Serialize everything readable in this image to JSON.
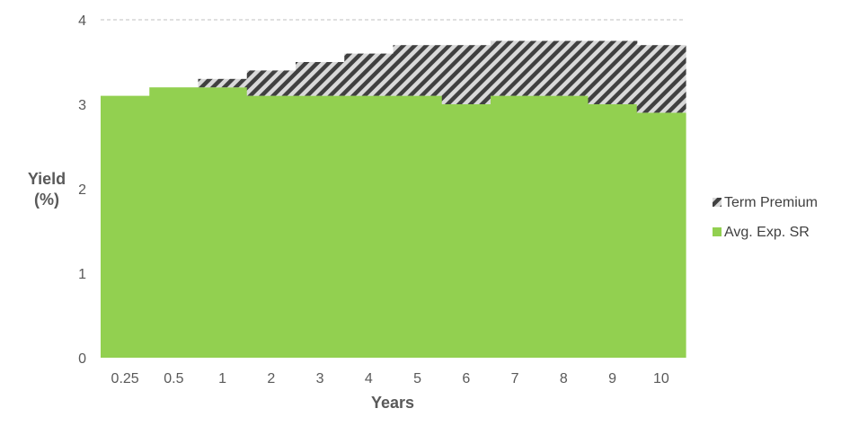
{
  "chart_data": {
    "type": "area",
    "stacked": true,
    "title": "",
    "xlabel": "Years",
    "ylabel": [
      "Yield",
      "(%)"
    ],
    "ylim": [
      0,
      4
    ],
    "yticks": [
      "0",
      "1",
      "2",
      "3",
      "4"
    ],
    "grid": "top gridline only (dashed)",
    "legend_position": "right",
    "categories": [
      "0.25",
      "0.5",
      "1",
      "2",
      "3",
      "4",
      "5",
      "6",
      "7",
      "8",
      "9",
      "10"
    ],
    "series": [
      {
        "name": "Avg. Exp. SR",
        "color": "#92d050",
        "pattern": "solid",
        "values": [
          3.1,
          3.2,
          3.2,
          3.1,
          3.1,
          3.1,
          3.1,
          3.0,
          3.1,
          3.1,
          3.0,
          2.9
        ]
      },
      {
        "name": "Term Premium",
        "color": "#404040",
        "pattern": "diagonal-stripes",
        "values": [
          0.0,
          0.0,
          0.1,
          0.3,
          0.4,
          0.5,
          0.6,
          0.7,
          0.65,
          0.65,
          0.75,
          0.8
        ]
      }
    ]
  }
}
